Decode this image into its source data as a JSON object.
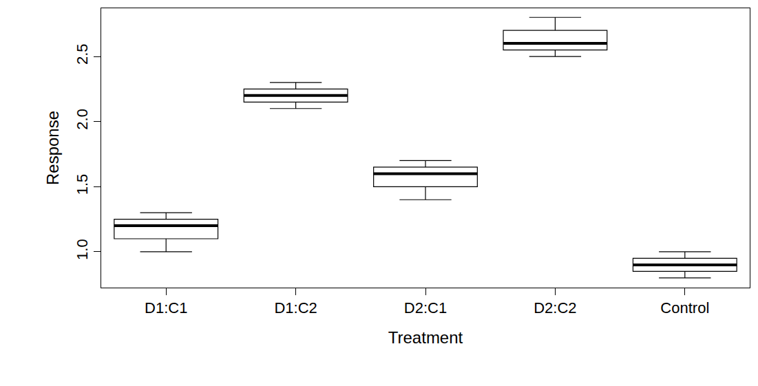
{
  "chart_data": {
    "type": "box",
    "x_label": "Treatment",
    "y_label": "Response",
    "categories": [
      "D1:C1",
      "D1:C2",
      "D2:C1",
      "D2:C2",
      "Control"
    ],
    "boxes": [
      {
        "min": 1.0,
        "q1": 1.1,
        "median": 1.2,
        "q3": 1.25,
        "max": 1.3
      },
      {
        "min": 2.1,
        "q1": 2.15,
        "median": 2.2,
        "q3": 2.25,
        "max": 2.3
      },
      {
        "min": 1.4,
        "q1": 1.5,
        "median": 1.6,
        "q3": 1.65,
        "max": 1.7
      },
      {
        "min": 2.5,
        "q1": 2.55,
        "median": 2.6,
        "q3": 2.7,
        "max": 2.8
      },
      {
        "min": 0.8,
        "q1": 0.85,
        "median": 0.9,
        "q3": 0.95,
        "max": 1.0
      }
    ],
    "color": "#000000",
    "ylim": [
      0.725,
      2.87
    ],
    "yticks": [
      {
        "value": 1,
        "label": "1.0"
      },
      1.5,
      {
        "value": 2,
        "label": "2.0"
      },
      2.5
    ],
    "grid": false
  }
}
